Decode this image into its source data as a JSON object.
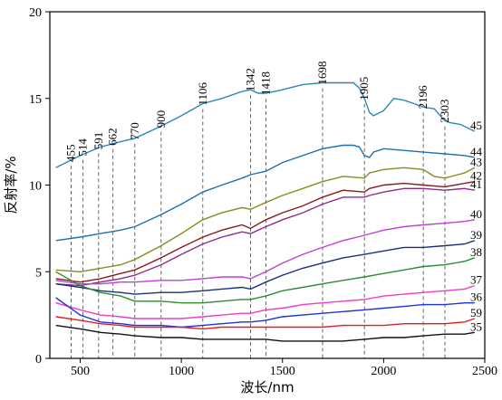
{
  "chart_data": {
    "type": "line",
    "xlabel": "波长/nm",
    "ylabel": "反射率/%",
    "xlim": [
      350,
      2500
    ],
    "ylim": [
      0,
      20
    ],
    "xticks": [
      500,
      1000,
      1500,
      2000,
      2500
    ],
    "yticks": [
      0,
      5,
      10,
      15,
      20
    ],
    "grid": false,
    "markers": [
      455,
      514,
      591,
      662,
      770,
      900,
      1106,
      1342,
      1418,
      1698,
      1905,
      2196,
      2303
    ],
    "series": [
      {
        "name": "45",
        "color": "#2e86b8",
        "x": [
          380,
          500,
          600,
          700,
          770,
          900,
          1000,
          1106,
          1200,
          1300,
          1342,
          1380,
          1418,
          1500,
          1600,
          1698,
          1750,
          1800,
          1850,
          1880,
          1905,
          1930,
          1950,
          2000,
          2050,
          2100,
          2150,
          2196,
          2250,
          2280,
          2303,
          2330,
          2380,
          2450
        ],
        "y": [
          11.0,
          11.7,
          12.2,
          12.5,
          12.7,
          13.4,
          14.0,
          14.7,
          15.0,
          15.4,
          15.5,
          15.3,
          15.3,
          15.5,
          15.8,
          15.9,
          15.9,
          15.9,
          15.9,
          15.6,
          15.0,
          14.2,
          14.0,
          14.3,
          15.0,
          14.9,
          14.7,
          14.5,
          14.4,
          14.0,
          13.7,
          13.6,
          13.5,
          13.1
        ]
      },
      {
        "name": "44",
        "color": "#1f6fad",
        "x": [
          380,
          500,
          600,
          700,
          770,
          900,
          1000,
          1106,
          1200,
          1300,
          1342,
          1418,
          1500,
          1600,
          1698,
          1800,
          1850,
          1880,
          1905,
          1930,
          1950,
          2000,
          2100,
          2196,
          2303,
          2400,
          2450
        ],
        "y": [
          6.8,
          7.0,
          7.2,
          7.4,
          7.6,
          8.3,
          8.9,
          9.6,
          10.0,
          10.4,
          10.6,
          10.8,
          11.3,
          11.7,
          12.1,
          12.3,
          12.3,
          12.2,
          11.7,
          11.6,
          11.9,
          12.1,
          12.0,
          11.9,
          11.8,
          11.7,
          11.6
        ]
      },
      {
        "name": "43",
        "color": "#8b8a1f",
        "x": [
          380,
          500,
          600,
          700,
          770,
          900,
          1000,
          1106,
          1200,
          1300,
          1342,
          1418,
          1500,
          1600,
          1698,
          1800,
          1905,
          1930,
          2000,
          2100,
          2196,
          2250,
          2303,
          2400,
          2450
        ],
        "y": [
          5.1,
          5.0,
          5.2,
          5.4,
          5.7,
          6.5,
          7.2,
          8.0,
          8.4,
          8.7,
          8.6,
          9.0,
          9.4,
          9.8,
          10.2,
          10.5,
          10.4,
          10.7,
          10.9,
          11.0,
          10.9,
          10.5,
          10.4,
          10.7,
          11.0
        ]
      },
      {
        "name": "42",
        "color": "#8b1a1a",
        "x": [
          380,
          500,
          600,
          700,
          770,
          900,
          1000,
          1106,
          1200,
          1300,
          1342,
          1418,
          1500,
          1600,
          1698,
          1800,
          1905,
          1930,
          2000,
          2100,
          2196,
          2303,
          2400,
          2450
        ],
        "y": [
          4.6,
          4.4,
          4.6,
          4.9,
          5.1,
          5.8,
          6.4,
          7.0,
          7.4,
          7.7,
          7.5,
          8.0,
          8.4,
          8.8,
          9.3,
          9.7,
          9.6,
          9.8,
          10.0,
          10.1,
          10.0,
          9.9,
          10.1,
          10.2
        ]
      },
      {
        "name": "41",
        "color": "#8e2b8e",
        "x": [
          380,
          500,
          600,
          700,
          770,
          900,
          1000,
          1106,
          1200,
          1300,
          1342,
          1418,
          1500,
          1600,
          1698,
          1800,
          1905,
          1930,
          2000,
          2100,
          2196,
          2303,
          2400,
          2450
        ],
        "y": [
          4.3,
          4.2,
          4.4,
          4.6,
          4.8,
          5.4,
          6.0,
          6.6,
          7.0,
          7.3,
          7.2,
          7.6,
          8.0,
          8.4,
          8.9,
          9.3,
          9.3,
          9.4,
          9.6,
          9.8,
          9.8,
          9.7,
          9.8,
          9.7
        ]
      },
      {
        "name": "40",
        "color": "#c03fd6",
        "x": [
          380,
          500,
          600,
          700,
          770,
          900,
          1000,
          1106,
          1200,
          1300,
          1342,
          1418,
          1500,
          1600,
          1698,
          1800,
          1905,
          2000,
          2100,
          2196,
          2303,
          2400,
          2450
        ],
        "y": [
          4.5,
          4.3,
          4.3,
          4.4,
          4.4,
          4.5,
          4.5,
          4.6,
          4.7,
          4.7,
          4.6,
          5.0,
          5.5,
          6.0,
          6.4,
          6.8,
          7.1,
          7.4,
          7.6,
          7.7,
          7.8,
          7.9,
          8.0
        ]
      },
      {
        "name": "39",
        "color": "#1c2f7a",
        "x": [
          380,
          500,
          600,
          700,
          770,
          900,
          1000,
          1106,
          1200,
          1300,
          1342,
          1418,
          1500,
          1600,
          1698,
          1800,
          1905,
          2000,
          2100,
          2196,
          2303,
          2400,
          2450
        ],
        "y": [
          4.3,
          4.1,
          3.9,
          3.8,
          3.7,
          3.8,
          3.8,
          3.9,
          4.0,
          4.1,
          4.0,
          4.4,
          4.8,
          5.2,
          5.5,
          5.8,
          6.0,
          6.2,
          6.4,
          6.4,
          6.5,
          6.6,
          6.8
        ]
      },
      {
        "name": "38",
        "color": "#2e8b2e",
        "x": [
          380,
          500,
          600,
          700,
          770,
          900,
          1000,
          1106,
          1200,
          1300,
          1342,
          1418,
          1500,
          1600,
          1698,
          1800,
          1905,
          2000,
          2100,
          2196,
          2303,
          2400,
          2450
        ],
        "y": [
          5.0,
          4.2,
          3.8,
          3.6,
          3.3,
          3.3,
          3.2,
          3.2,
          3.3,
          3.4,
          3.4,
          3.6,
          3.9,
          4.1,
          4.3,
          4.5,
          4.7,
          4.9,
          5.1,
          5.3,
          5.4,
          5.6,
          5.8
        ]
      },
      {
        "name": "37",
        "color": "#f03cc8",
        "x": [
          380,
          500,
          600,
          700,
          770,
          900,
          1000,
          1106,
          1200,
          1300,
          1342,
          1418,
          1500,
          1600,
          1698,
          1800,
          1905,
          2000,
          2100,
          2196,
          2303,
          2400,
          2450
        ],
        "y": [
          3.2,
          2.8,
          2.5,
          2.4,
          2.3,
          2.3,
          2.3,
          2.4,
          2.5,
          2.6,
          2.6,
          2.8,
          2.9,
          3.1,
          3.2,
          3.3,
          3.4,
          3.6,
          3.7,
          3.8,
          3.9,
          4.0,
          4.2
        ]
      },
      {
        "name": "36",
        "color": "#1a36d9",
        "x": [
          380,
          500,
          600,
          700,
          770,
          900,
          1000,
          1106,
          1200,
          1300,
          1342,
          1418,
          1500,
          1600,
          1698,
          1800,
          1905,
          2000,
          2100,
          2196,
          2303,
          2400,
          2450
        ],
        "y": [
          3.5,
          2.5,
          2.1,
          2.0,
          1.9,
          1.9,
          1.8,
          1.9,
          2.0,
          2.1,
          2.1,
          2.2,
          2.4,
          2.5,
          2.6,
          2.7,
          2.8,
          2.9,
          3.0,
          3.1,
          3.1,
          3.2,
          3.2
        ]
      },
      {
        "name": "59",
        "color": "#e02020",
        "x": [
          380,
          500,
          600,
          700,
          770,
          900,
          1000,
          1106,
          1200,
          1300,
          1342,
          1418,
          1500,
          1600,
          1698,
          1800,
          1905,
          2000,
          2100,
          2196,
          2303,
          2400,
          2450
        ],
        "y": [
          2.4,
          2.2,
          2.0,
          1.9,
          1.8,
          1.8,
          1.8,
          1.7,
          1.8,
          1.8,
          1.8,
          1.8,
          1.8,
          1.8,
          1.8,
          1.9,
          1.9,
          1.9,
          2.0,
          2.0,
          2.0,
          2.1,
          2.3
        ]
      },
      {
        "name": "35",
        "color": "#111111",
        "x": [
          380,
          500,
          600,
          700,
          770,
          900,
          1000,
          1106,
          1200,
          1300,
          1342,
          1418,
          1500,
          1600,
          1698,
          1800,
          1905,
          2000,
          2100,
          2196,
          2303,
          2400,
          2450
        ],
        "y": [
          1.9,
          1.7,
          1.5,
          1.4,
          1.3,
          1.2,
          1.2,
          1.1,
          1.1,
          1.1,
          1.1,
          1.1,
          1.0,
          1.0,
          1.0,
          1.0,
          1.1,
          1.2,
          1.2,
          1.3,
          1.4,
          1.4,
          1.5
        ]
      }
    ]
  }
}
